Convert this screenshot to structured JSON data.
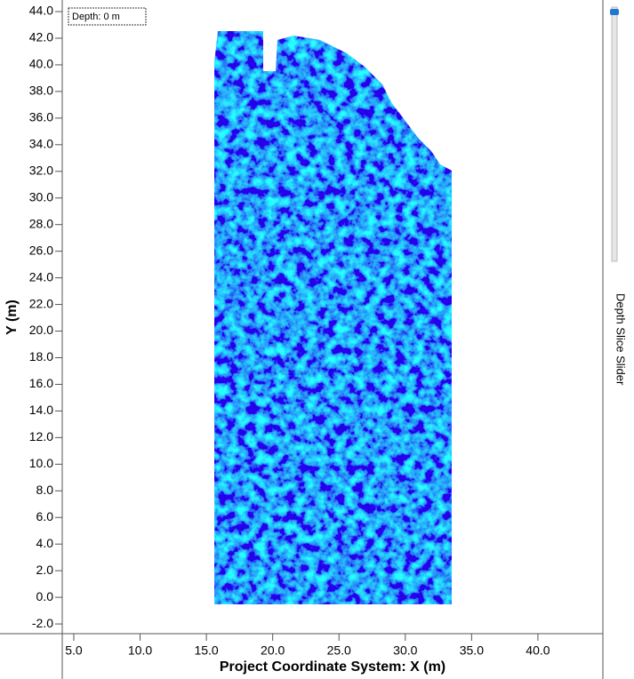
{
  "chart_data": {
    "type": "heatmap",
    "depth_label": "Depth: 0 m",
    "x_label": "Project Coordinate System: X (m)",
    "y_label": "Y (m)",
    "slider_label": "Depth Slice Slider",
    "xlim": [
      4.13,
      44.9
    ],
    "ylim": [
      -2.73,
      44.87
    ],
    "xticks": [
      {
        "value": 5,
        "label": "5.0"
      },
      {
        "value": 10,
        "label": "10.0"
      },
      {
        "value": 15,
        "label": "15.0"
      },
      {
        "value": 20,
        "label": "20.0"
      },
      {
        "value": 25,
        "label": "25.0"
      },
      {
        "value": 30,
        "label": "30.0"
      },
      {
        "value": 35,
        "label": "35.0"
      },
      {
        "value": 40,
        "label": "40.0"
      }
    ],
    "yticks": [
      {
        "value": -2,
        "label": "-2.0"
      },
      {
        "value": 0,
        "label": "0.0"
      },
      {
        "value": 2,
        "label": "2.0"
      },
      {
        "value": 4,
        "label": "4.0"
      },
      {
        "value": 6,
        "label": "6.0"
      },
      {
        "value": 8,
        "label": "8.0"
      },
      {
        "value": 10,
        "label": "10.0"
      },
      {
        "value": 12,
        "label": "12.0"
      },
      {
        "value": 14,
        "label": "14.0"
      },
      {
        "value": 16,
        "label": "16.0"
      },
      {
        "value": 18,
        "label": "18.0"
      },
      {
        "value": 20,
        "label": "20.0"
      },
      {
        "value": 22,
        "label": "22.0"
      },
      {
        "value": 24,
        "label": "24.0"
      },
      {
        "value": 26,
        "label": "26.0"
      },
      {
        "value": 28,
        "label": "28.0"
      },
      {
        "value": 30,
        "label": "30.0"
      },
      {
        "value": 32,
        "label": "32.0"
      },
      {
        "value": 34,
        "label": "34.0"
      },
      {
        "value": 36,
        "label": "36.0"
      },
      {
        "value": 38,
        "label": "38.0"
      },
      {
        "value": 40,
        "label": "40.0"
      },
      {
        "value": 42,
        "label": "42.0"
      },
      {
        "value": 44,
        "label": "44.0"
      }
    ]
  }
}
